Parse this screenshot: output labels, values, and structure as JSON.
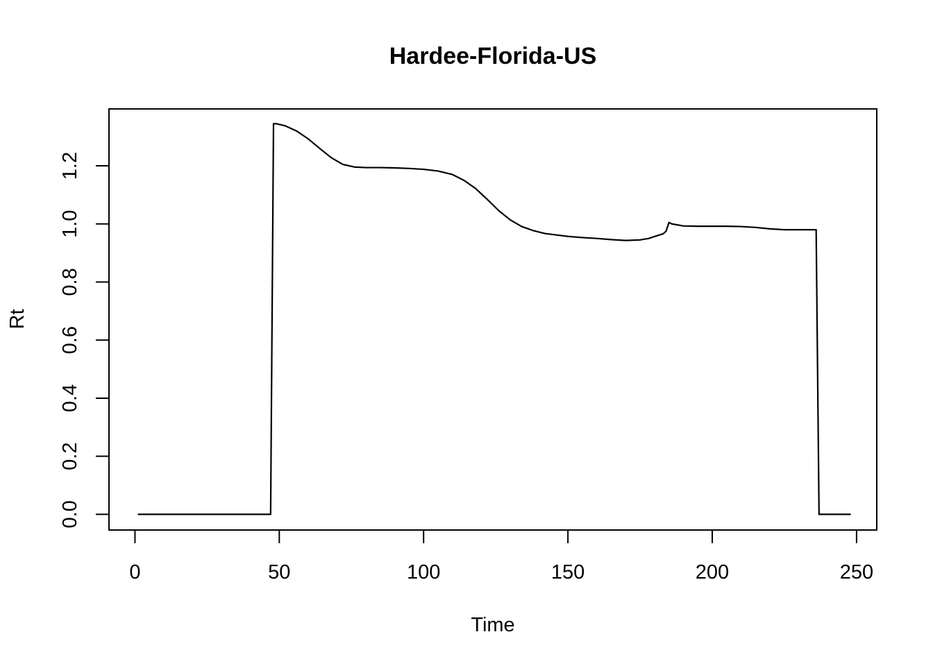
{
  "chart_data": {
    "type": "line",
    "title": "Hardee-Florida-US",
    "xlabel": "Time",
    "ylabel": "Rt",
    "xlim": [
      -9,
      257
    ],
    "ylim": [
      -0.054,
      1.396
    ],
    "xticks": [
      0,
      50,
      100,
      150,
      200,
      250
    ],
    "xtick_labels": [
      "0",
      "50",
      "100",
      "150",
      "200",
      "250"
    ],
    "yticks": [
      0.0,
      0.2,
      0.4,
      0.6,
      0.8,
      1.0,
      1.2
    ],
    "ytick_labels": [
      "0.0",
      "0.2",
      "0.4",
      "0.6",
      "0.8",
      "1.0",
      "1.2"
    ],
    "grid": false,
    "legend": "none",
    "series": [
      {
        "x": [
          1,
          47,
          48,
          49,
          52,
          56,
          60,
          64,
          68,
          72,
          76,
          80,
          85,
          90,
          95,
          100,
          105,
          110,
          114,
          118,
          122,
          126,
          130,
          134,
          138,
          142,
          146,
          150,
          155,
          160,
          165,
          170,
          175,
          178,
          181,
          183,
          184,
          185,
          186,
          190,
          195,
          200,
          205,
          210,
          215,
          220,
          225,
          230,
          235,
          236,
          237,
          248
        ],
        "y": [
          0.0,
          0.0,
          1.345,
          1.345,
          1.338,
          1.32,
          1.293,
          1.26,
          1.228,
          1.205,
          1.196,
          1.194,
          1.194,
          1.193,
          1.191,
          1.188,
          1.182,
          1.17,
          1.15,
          1.122,
          1.085,
          1.046,
          1.014,
          0.991,
          0.977,
          0.967,
          0.962,
          0.957,
          0.953,
          0.95,
          0.946,
          0.943,
          0.945,
          0.95,
          0.96,
          0.966,
          0.975,
          1.005,
          1.0,
          0.993,
          0.992,
          0.992,
          0.992,
          0.991,
          0.988,
          0.983,
          0.98,
          0.98,
          0.98,
          0.98,
          0.0,
          0.0
        ]
      }
    ]
  }
}
